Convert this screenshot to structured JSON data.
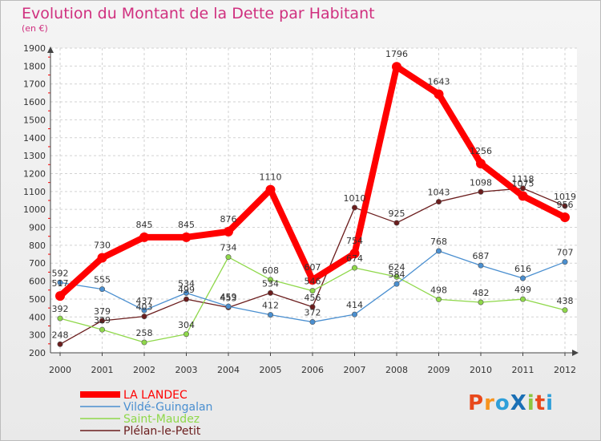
{
  "chart_data": {
    "type": "line",
    "title": "Evolution du Montant de la Dette par Habitant",
    "subtitle": "(en €)",
    "xlabel": "",
    "ylabel": "",
    "x": [
      "2000",
      "2001",
      "2002",
      "2003",
      "2004",
      "2005",
      "2006",
      "2007",
      "2008",
      "2009",
      "2010",
      "2011",
      "2012"
    ],
    "ylim": [
      200,
      1900
    ],
    "yticks": [
      200,
      300,
      400,
      500,
      600,
      700,
      800,
      900,
      1000,
      1100,
      1200,
      1300,
      1400,
      1500,
      1600,
      1700,
      1800,
      1900
    ],
    "grid": true,
    "legend_position": "bottom-left",
    "series": [
      {
        "name": "LA LANDEC",
        "color": "#ff0000",
        "values": [
          517,
          730,
          845,
          845,
          876,
          1110,
          607,
          754,
          1796,
          1643,
          1256,
          1075,
          956
        ],
        "labels": [
          "517",
          "730",
          "845",
          "845",
          "876",
          "1110",
          "607",
          "754",
          "1796",
          "1643",
          "1256",
          "1075",
          "956"
        ]
      },
      {
        "name": "Vildé-Guingalan",
        "color": "#4a8fd0",
        "values": [
          592,
          555,
          437,
          534,
          459,
          412,
          372,
          414,
          584,
          768,
          687,
          616,
          707
        ],
        "labels": [
          "592",
          "555",
          "437",
          "534",
          "459",
          "412",
          "372",
          "414",
          "584",
          "768",
          "687",
          "616",
          "707"
        ]
      },
      {
        "name": "Saint-Maudez",
        "color": "#8fd84a",
        "values": [
          392,
          329,
          258,
          304,
          734,
          608,
          546,
          674,
          624,
          498,
          482,
          499,
          438
        ],
        "labels": [
          "392",
          "329",
          "258",
          "304",
          "734",
          "608",
          "546",
          "674",
          "624",
          "498",
          "482",
          "499",
          "438"
        ]
      },
      {
        "name": "Plélan-le-Petit",
        "color": "#6b1d1d",
        "values": [
          248,
          379,
          403,
          499,
          453,
          534,
          456,
          1010,
          925,
          1043,
          1098,
          1118,
          1019
        ],
        "labels": [
          "248",
          "379",
          "403",
          "499",
          "453",
          "534",
          "456",
          "1010",
          "925",
          "1043",
          "1098",
          "1118",
          "1019"
        ]
      }
    ]
  },
  "brand": {
    "text": "ProXiti",
    "colors": [
      "#e8491c",
      "#f7941e",
      "#2e9fd9",
      "#1a6fb5",
      "#8cc63f",
      "#e8491c",
      "#2e9fd9"
    ]
  }
}
